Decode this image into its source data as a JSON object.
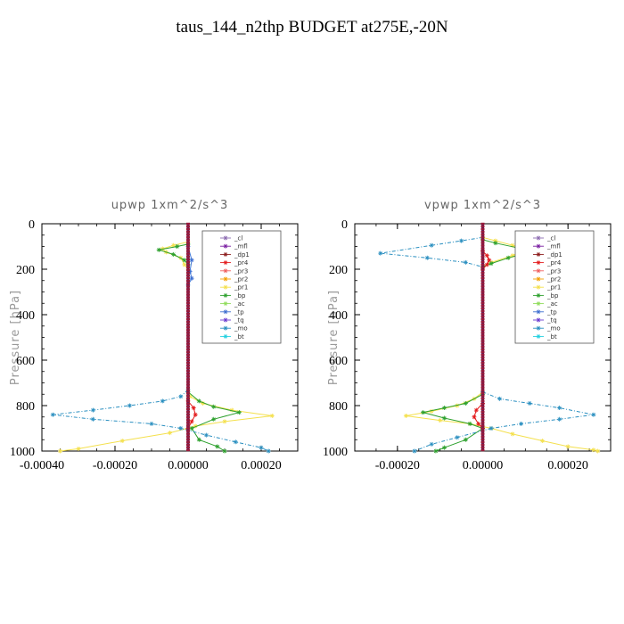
{
  "title": "taus_144_n2thp  BUDGET at275E,-20N",
  "legend_names": [
    "_cl",
    "_mfl",
    "_dp1",
    "_pr4",
    "_pr3",
    "_pr2",
    "_pr1",
    "_bp",
    "_ac",
    "_tp",
    "_tq",
    "_mo",
    "_bt"
  ],
  "colors": {
    "_cl": "#8c6bb1",
    "_mfl": "#7b1fa2",
    "_dp1": "#8b1a1a",
    "_pr4": "#e31a1c",
    "_pr3": "#f06060",
    "_pr2": "#f4a000",
    "_pr1": "#f4e04d",
    "_bp": "#2ca02c",
    "_ac": "#8fdc5a",
    "_tp": "#3f6fd0",
    "_tq": "#6a3ad0",
    "_mo": "#2a8fc0",
    "_bt": "#20d0e0"
  },
  "chart_data": [
    {
      "type": "line",
      "title": "upwp   1xm^2/s^3",
      "ylabel": "Pressure [hPa]",
      "xlim": [
        -0.0004,
        0.0003
      ],
      "ylim": [
        1000,
        0
      ],
      "x_ticks": [
        -0.0004,
        -0.0002,
        0.0,
        0.0002
      ],
      "x_tick_labels": [
        "-0.00040",
        "-0.00020",
        "0.00000",
        "0.00020"
      ],
      "y_ticks": [
        0,
        200,
        400,
        600,
        800,
        1000
      ],
      "y_tick_labels": [
        "0",
        "200",
        "400",
        "600",
        "800",
        "1000"
      ],
      "legend_position": "top-right",
      "series": [
        {
          "name": "_pr1",
          "points": [
            [
              0,
              730
            ],
            [
              5e-06,
              760
            ],
            [
              4e-05,
              790
            ],
            [
              0.00012,
              820
            ],
            [
              0.00023,
              845
            ],
            [
              0.0001,
              870
            ],
            [
              2e-05,
              890
            ],
            [
              -5e-05,
              920
            ],
            [
              -0.00018,
              955
            ],
            [
              -0.0003,
              990
            ],
            [
              -0.00035,
              1000
            ]
          ]
        },
        {
          "name": "_bp",
          "points": [
            [
              0,
              740
            ],
            [
              3e-05,
              780
            ],
            [
              7e-05,
              805
            ],
            [
              0.00014,
              830
            ],
            [
              7e-05,
              860
            ],
            [
              1e-05,
              900
            ],
            [
              3e-05,
              950
            ],
            [
              8e-05,
              980
            ],
            [
              0.0001,
              1000
            ]
          ]
        },
        {
          "name": "_mo",
          "points": [
            [
              0,
              730
            ],
            [
              -2e-05,
              760
            ],
            [
              -7e-05,
              780
            ],
            [
              -0.00016,
              800
            ],
            [
              -0.00026,
              820
            ],
            [
              -0.00037,
              840
            ],
            [
              -0.00026,
              860
            ],
            [
              -0.0001,
              880
            ],
            [
              -2e-05,
              900
            ],
            [
              5e-05,
              930
            ],
            [
              0.00013,
              960
            ],
            [
              0.0002,
              985
            ],
            [
              0.00022,
              1000
            ]
          ]
        },
        {
          "name": "_pr4",
          "points": [
            [
              0,
              780
            ],
            [
              1.5e-05,
              810
            ],
            [
              2e-05,
              840
            ],
            [
              1e-05,
              870
            ],
            [
              0,
              900
            ]
          ]
        },
        {
          "name": "_pr1",
          "points": [
            [
              0,
              80
            ],
            [
              -4e-05,
              95
            ],
            [
              -7e-05,
              110
            ],
            [
              -6e-05,
              125
            ],
            [
              -2e-05,
              150
            ],
            [
              -1e-05,
              180
            ],
            [
              0,
              200
            ]
          ]
        },
        {
          "name": "_bp",
          "points": [
            [
              0,
              90
            ],
            [
              -3e-05,
              100
            ],
            [
              -8e-05,
              115
            ],
            [
              -4e-05,
              135
            ],
            [
              -1e-05,
              160
            ],
            [
              0,
              180
            ]
          ]
        },
        {
          "name": "_tp",
          "points": [
            [
              0,
              100
            ],
            [
              1e-05,
              160
            ],
            [
              5e-06,
              210
            ],
            [
              1e-05,
              240
            ],
            [
              0,
              270
            ]
          ]
        }
      ]
    },
    {
      "type": "line",
      "title": "vpwp   1xm^2/s^3",
      "ylabel": "Pressure [hPa]",
      "xlim": [
        -0.0003,
        0.0003
      ],
      "ylim": [
        1000,
        0
      ],
      "x_ticks": [
        -0.0002,
        0.0,
        0.0002
      ],
      "x_tick_labels": [
        "-0.00020",
        "0.00000",
        "0.00020"
      ],
      "y_ticks": [
        0,
        200,
        400,
        600,
        800,
        1000
      ],
      "y_tick_labels": [
        "0",
        "200",
        "400",
        "600",
        "800",
        "1000"
      ],
      "legend_position": "top-right",
      "series": [
        {
          "name": "_mo",
          "points": [
            [
              0,
              60
            ],
            [
              -5e-05,
              75
            ],
            [
              -0.00012,
              95
            ],
            [
              -0.00024,
              130
            ],
            [
              -0.00013,
              150
            ],
            [
              -4e-05,
              170
            ],
            [
              0,
              190
            ]
          ]
        },
        {
          "name": "_pr1",
          "points": [
            [
              0,
              60
            ],
            [
              3e-05,
              75
            ],
            [
              7e-05,
              95
            ],
            [
              0.0001,
              115
            ],
            [
              7e-05,
              140
            ],
            [
              2e-05,
              170
            ],
            [
              0,
              190
            ]
          ]
        },
        {
          "name": "_bp",
          "points": [
            [
              0,
              70
            ],
            [
              3e-05,
              85
            ],
            [
              8e-05,
              105
            ],
            [
              0.00011,
              125
            ],
            [
              6e-05,
              150
            ],
            [
              2e-05,
              175
            ],
            [
              0,
              190
            ]
          ]
        },
        {
          "name": "_pr4",
          "points": [
            [
              0,
              120
            ],
            [
              1e-05,
              140
            ],
            [
              1.5e-05,
              160
            ],
            [
              1e-05,
              180
            ],
            [
              0,
              200
            ]
          ]
        },
        {
          "name": "_pr1",
          "points": [
            [
              0,
              740
            ],
            [
              -2e-05,
              770
            ],
            [
              -6e-05,
              800
            ],
            [
              -0.00012,
              825
            ],
            [
              -0.00018,
              845
            ],
            [
              -0.0001,
              865
            ],
            [
              -3e-05,
              880
            ],
            [
              2e-05,
              900
            ],
            [
              7e-05,
              925
            ],
            [
              0.00014,
              955
            ],
            [
              0.0002,
              980
            ],
            [
              0.00026,
              995
            ],
            [
              0.00027,
              1000
            ]
          ]
        },
        {
          "name": "_bp",
          "points": [
            [
              0,
              750
            ],
            [
              -4e-05,
              790
            ],
            [
              -9e-05,
              810
            ],
            [
              -0.00014,
              830
            ],
            [
              -9e-05,
              855
            ],
            [
              -3e-05,
              880
            ],
            [
              0,
              900
            ],
            [
              -4e-05,
              950
            ],
            [
              -9e-05,
              985
            ],
            [
              -0.00011,
              1000
            ]
          ]
        },
        {
          "name": "_mo",
          "points": [
            [
              0,
              740
            ],
            [
              4e-05,
              770
            ],
            [
              0.00011,
              790
            ],
            [
              0.00018,
              810
            ],
            [
              0.00026,
              840
            ],
            [
              0.00018,
              860
            ],
            [
              9e-05,
              880
            ],
            [
              2e-05,
              900
            ],
            [
              -6e-05,
              940
            ],
            [
              -0.00012,
              970
            ],
            [
              -0.00016,
              1000
            ]
          ]
        },
        {
          "name": "_pr4",
          "points": [
            [
              0,
              790
            ],
            [
              -1.5e-05,
              820
            ],
            [
              -2e-05,
              850
            ],
            [
              -1e-05,
              880
            ],
            [
              0,
              900
            ]
          ]
        }
      ]
    }
  ]
}
